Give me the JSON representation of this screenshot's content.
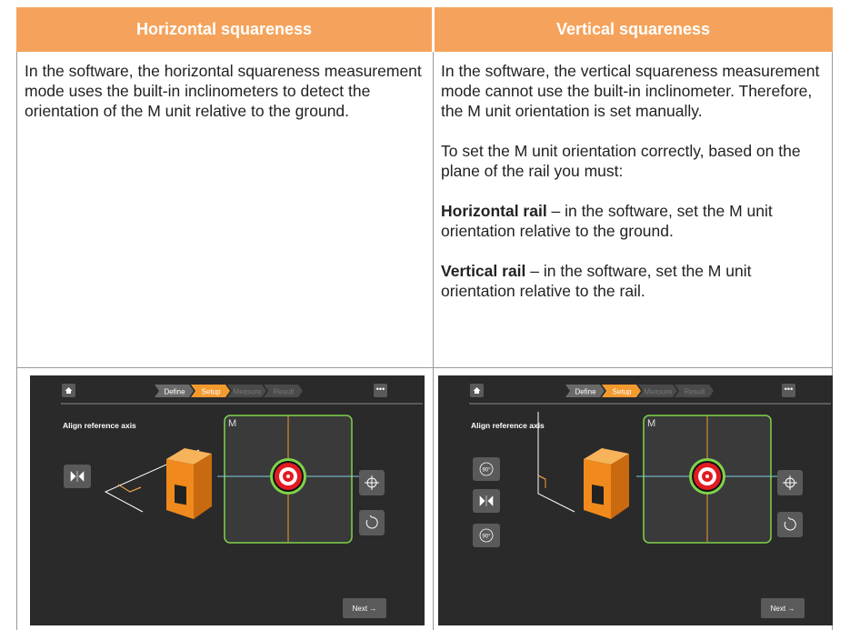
{
  "table": {
    "header": [
      "Horizontal squareness",
      "Vertical squareness"
    ],
    "left": {
      "paragraphs": [
        "In the software, the horizontal squareness measurement mode uses the built-in inclinometers to detect the orientation of the M unit relative to the ground."
      ]
    },
    "right": {
      "paragraphs": [
        "In the software, the vertical squareness measurement mode cannot use the built-in inclinometer. Therefore, the M unit orientation is set manually.",
        "To set the M unit orientation correctly, based on the plane of the rail you must:"
      ],
      "items": [
        {
          "term": "Horizontal rail",
          "text": " – in the software, set the M unit orientation relative to the ground."
        },
        {
          "term": "Vertical rail",
          "text": " – in the software, set the M unit orientation relative to the rail."
        }
      ]
    }
  },
  "screens": [
    {
      "steps": [
        "Define",
        "Setup",
        "Measure",
        "Result"
      ],
      "title": "Align reference axis",
      "unit": "M",
      "next": "Next →"
    },
    {
      "steps": [
        "Define",
        "Setup",
        "Measure",
        "Result"
      ],
      "title": "Align reference axis",
      "unit": "M",
      "next": "Next →",
      "rotate": [
        "90°",
        "90°"
      ]
    }
  ]
}
